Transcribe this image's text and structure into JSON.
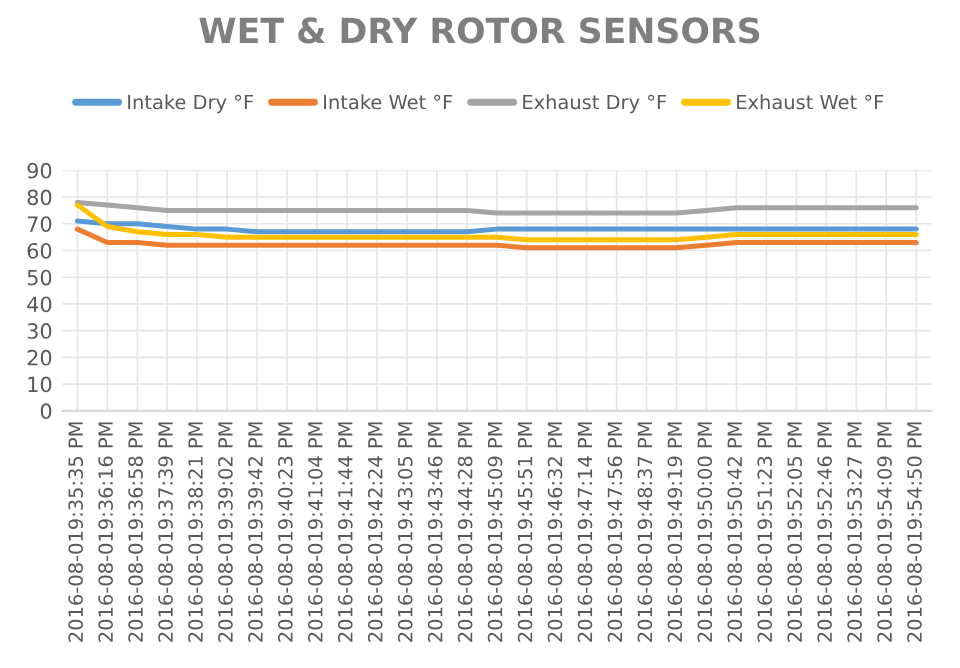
{
  "chart_data": {
    "type": "line",
    "title": "WET & DRY ROTOR SENSORS",
    "categories": [
      "2016-08-019:35:35 PM",
      "2016-08-019:36:16 PM",
      "2016-08-019:36:58 PM",
      "2016-08-019:37:39 PM",
      "2016-08-019:38:21 PM",
      "2016-08-019:39:02 PM",
      "2016-08-019:39:42 PM",
      "2016-08-019:40:23 PM",
      "2016-08-019:41:04 PM",
      "2016-08-019:41:44 PM",
      "2016-08-019:42:24 PM",
      "2016-08-019:43:05 PM",
      "2016-08-019:43:46 PM",
      "2016-08-019:44:28 PM",
      "2016-08-019:45:09 PM",
      "2016-08-019:45:51 PM",
      "2016-08-019:46:32 PM",
      "2016-08-019:47:14 PM",
      "2016-08-019:47:56 PM",
      "2016-08-019:48:37 PM",
      "2016-08-019:49:19 PM",
      "2016-08-019:50:00 PM",
      "2016-08-019:50:42 PM",
      "2016-08-019:51:23 PM",
      "2016-08-019:52:05 PM",
      "2016-08-019:52:46 PM",
      "2016-08-019:53:27 PM",
      "2016-08-019:54:09 PM",
      "2016-08-019:54:50 PM"
    ],
    "series": [
      {
        "name": "Intake Dry °F",
        "color": "#5b9bd5",
        "values": [
          71,
          70,
          70,
          69,
          68,
          68,
          67,
          67,
          67,
          67,
          67,
          67,
          67,
          67,
          68,
          68,
          68,
          68,
          68,
          68,
          68,
          68,
          68,
          68,
          68,
          68,
          68,
          68,
          68
        ]
      },
      {
        "name": "Intake Wet °F",
        "color": "#ed7d31",
        "values": [
          68,
          63,
          63,
          62,
          62,
          62,
          62,
          62,
          62,
          62,
          62,
          62,
          62,
          62,
          62,
          61,
          61,
          61,
          61,
          61,
          61,
          62,
          63,
          63,
          63,
          63,
          63,
          63,
          63
        ]
      },
      {
        "name": "Exhaust Dry °F",
        "color": "#a5a5a5",
        "values": [
          78,
          77,
          76,
          75,
          75,
          75,
          75,
          75,
          75,
          75,
          75,
          75,
          75,
          75,
          74,
          74,
          74,
          74,
          74,
          74,
          74,
          75,
          76,
          76,
          76,
          76,
          76,
          76,
          76
        ]
      },
      {
        "name": "Exhaust Wet °F",
        "color": "#ffc000",
        "values": [
          77,
          69,
          67,
          66,
          66,
          65,
          65,
          65,
          65,
          65,
          65,
          65,
          65,
          65,
          65,
          64,
          64,
          64,
          64,
          64,
          64,
          65,
          66,
          66,
          66,
          66,
          66,
          66,
          66
        ]
      }
    ],
    "ylim": [
      0,
      90
    ],
    "yticks": [
      0,
      10,
      20,
      30,
      40,
      50,
      60,
      70,
      80,
      90
    ],
    "grid": true,
    "legend": "top",
    "marker": "none",
    "line_style": "solid"
  }
}
